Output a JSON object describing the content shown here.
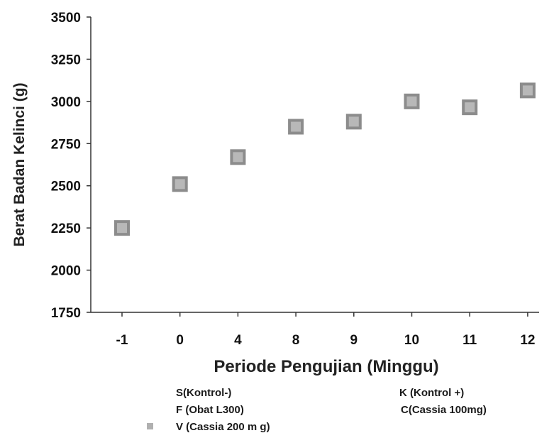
{
  "chart_data": {
    "type": "scatter",
    "title": "",
    "xlabel": "Periode Pengujian (Minggu)",
    "ylabel": "Berat Badan Kelinci (g)",
    "categories": [
      "-1",
      "0",
      "4",
      "8",
      "9",
      "10",
      "11",
      "12"
    ],
    "series": [
      {
        "name": "V (Cassia 200 m g)",
        "values": [
          2250,
          2510,
          2670,
          2850,
          2880,
          3000,
          2965,
          3065
        ]
      }
    ],
    "ylim": [
      1750,
      3500
    ],
    "yticks": [
      1750,
      2000,
      2250,
      2500,
      2750,
      3000,
      3250,
      3500
    ],
    "grid": false,
    "marker_color": "#8c8c8c",
    "legend": {
      "position": "bottom",
      "entries": [
        {
          "label": "S(Kontrol-)",
          "marker": false
        },
        {
          "label": "K (Kontrol +)",
          "marker": false
        },
        {
          "label": "F (Obat L300)",
          "marker": false
        },
        {
          "label": "C(Cassia 100mg)",
          "marker": false
        },
        {
          "label": "V (Cassia 200 m g)",
          "marker": true
        }
      ]
    }
  }
}
